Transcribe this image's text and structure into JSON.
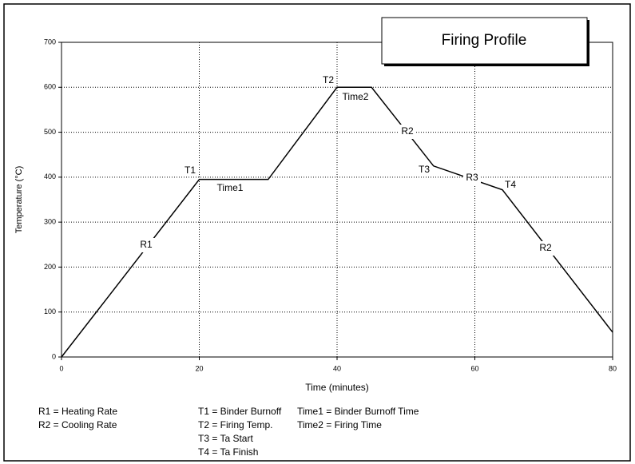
{
  "chart_data": {
    "type": "line",
    "title": "Firing Profile",
    "xlabel": "Time (minutes)",
    "ylabel": "Temperature (°C)",
    "x": [
      0,
      20,
      30,
      40,
      45,
      54,
      64,
      80
    ],
    "series": [
      {
        "name": null,
        "color": "#000000",
        "values": [
          0,
          395,
          395,
          600,
          600,
          425,
          372,
          55
        ]
      }
    ],
    "xlim": [
      0,
      80
    ],
    "xticks": [
      0,
      20,
      40,
      60,
      80
    ],
    "ylim": [
      0,
      700
    ],
    "yticks": [
      0,
      100,
      200,
      300,
      400,
      500,
      600,
      700
    ],
    "grid": true,
    "annotations": [
      "R1",
      "T1",
      "Time1",
      "T2",
      "Time2",
      "R2",
      "T3",
      "R3",
      "T4",
      "R2"
    ],
    "key": [
      [
        "R1 = Heating Rate",
        "R2 = Cooling Rate"
      ],
      [
        "T1 = Binder Burnoff",
        "T2 = Firing Temp.",
        "T3 = Ta Start",
        "T4 = Ta Finish"
      ],
      [
        "Time1 = Binder Burnoff Time",
        "Time2 = Firing Time"
      ]
    ]
  }
}
